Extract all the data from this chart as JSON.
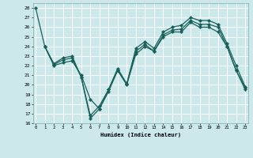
{
  "bg_color": "#cce8ea",
  "grid_color": "#ffffff",
  "line_color": "#1a5f5a",
  "xlabel": "Humidex (Indice chaleur)",
  "ylim": [
    16,
    28.5
  ],
  "xlim": [
    -0.3,
    23.3
  ],
  "yticks": [
    16,
    17,
    18,
    19,
    20,
    21,
    22,
    23,
    24,
    25,
    26,
    27,
    28
  ],
  "xticks": [
    0,
    1,
    2,
    3,
    4,
    5,
    6,
    7,
    8,
    9,
    10,
    11,
    12,
    13,
    14,
    15,
    16,
    17,
    18,
    19,
    20,
    21,
    22,
    23
  ],
  "line1_x": [
    0,
    1,
    2,
    3,
    4,
    5,
    6,
    7,
    8,
    9,
    10,
    11,
    12,
    13,
    14,
    15,
    16,
    17,
    18,
    19,
    20,
    21,
    22,
    23
  ],
  "line1_y": [
    28.0,
    24.0,
    22.0,
    22.3,
    22.5,
    21.0,
    18.5,
    17.5,
    19.5,
    21.5,
    20.0,
    23.2,
    24.0,
    23.5,
    25.0,
    25.5,
    25.5,
    26.5,
    26.0,
    26.0,
    25.5,
    24.0,
    21.5,
    19.5
  ],
  "line2_x": [
    1,
    2,
    3,
    4,
    5,
    6,
    7,
    8,
    9,
    10,
    11,
    12,
    13,
    14,
    15,
    16,
    17,
    18,
    19,
    20,
    21,
    22,
    23
  ],
  "line2_y": [
    24.0,
    22.1,
    22.6,
    22.8,
    20.8,
    16.5,
    17.5,
    19.3,
    21.5,
    20.1,
    23.5,
    24.2,
    23.5,
    25.2,
    25.7,
    25.8,
    26.7,
    26.3,
    26.3,
    26.0,
    24.0,
    21.5,
    19.7
  ],
  "line3_x": [
    1,
    2,
    3,
    4,
    5,
    6,
    7,
    8,
    9,
    10,
    11,
    12,
    13,
    14,
    15,
    16,
    17,
    18,
    19,
    20,
    21,
    22,
    23
  ],
  "line3_y": [
    24.0,
    22.2,
    22.8,
    23.0,
    20.8,
    16.8,
    17.8,
    19.5,
    21.7,
    20.1,
    23.8,
    24.5,
    23.8,
    25.5,
    26.0,
    26.2,
    27.0,
    26.7,
    26.7,
    26.3,
    24.3,
    22.0,
    19.8
  ]
}
